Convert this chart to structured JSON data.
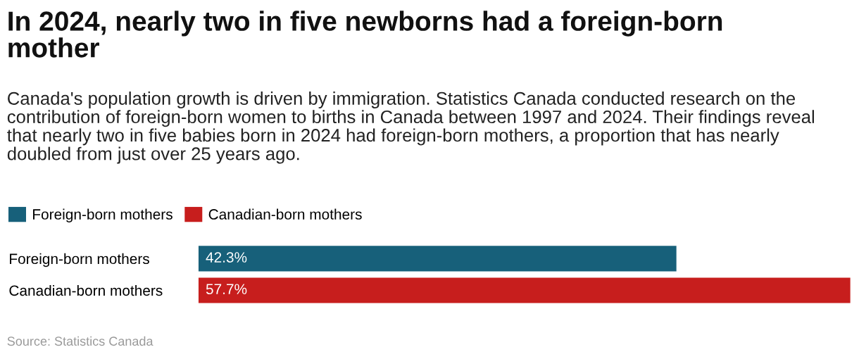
{
  "chart_data": {
    "type": "bar",
    "orientation": "horizontal",
    "stacked": true,
    "title": "In 2024, nearly two in five newborns had a foreign-born mother",
    "subtitle": "Canada's population growth is driven by immigration. Statistics Canada conducted research on the contribution of foreign-born women to births in Canada between 1997 and 2024. Their findings reveal that nearly two in five babies born in 2024 had foreign-born mothers, a proportion that has nearly doubled from just over 25 years ago.",
    "categories": [
      "Foreign-born mothers",
      "Canadian-born mothers"
    ],
    "series": [
      {
        "name": "Foreign-born mothers",
        "color": "#17607a",
        "values": [
          42.3,
          null
        ],
        "value_labels": [
          "42.3%",
          null
        ]
      },
      {
        "name": "Canadian-born mothers",
        "color": "#c71e1d",
        "values": [
          null,
          57.7
        ],
        "value_labels": [
          null,
          "57.7%"
        ]
      }
    ],
    "legend": "top left",
    "grid": false,
    "annotations": [
      "Source: Statistics Canada"
    ]
  }
}
